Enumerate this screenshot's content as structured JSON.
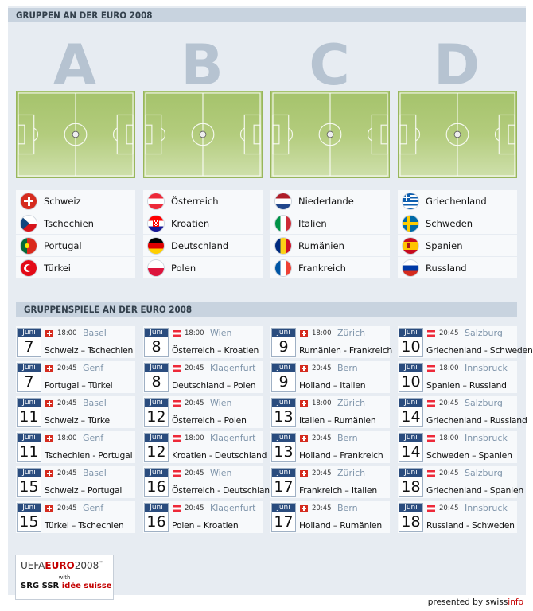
{
  "header": {
    "groups_title": "GRUPPEN AN DER EURO 2008",
    "matches_title": "GRUPPENSPIELE AN DER EURO 2008"
  },
  "groups": [
    {
      "letter": "A",
      "teams": [
        {
          "name": "Schweiz",
          "flag": "ch"
        },
        {
          "name": "Tschechien",
          "flag": "cz"
        },
        {
          "name": "Portugal",
          "flag": "pt"
        },
        {
          "name": "Türkei",
          "flag": "tr"
        }
      ]
    },
    {
      "letter": "B",
      "teams": [
        {
          "name": "Österreich",
          "flag": "at"
        },
        {
          "name": "Kroatien",
          "flag": "hr"
        },
        {
          "name": "Deutschland",
          "flag": "de"
        },
        {
          "name": "Polen",
          "flag": "pl"
        }
      ]
    },
    {
      "letter": "C",
      "teams": [
        {
          "name": "Niederlande",
          "flag": "nl"
        },
        {
          "name": "Italien",
          "flag": "it"
        },
        {
          "name": "Rumänien",
          "flag": "ro"
        },
        {
          "name": "Frankreich",
          "flag": "fr"
        }
      ]
    },
    {
      "letter": "D",
      "teams": [
        {
          "name": "Griechenland",
          "flag": "gr"
        },
        {
          "name": "Schweden",
          "flag": "se"
        },
        {
          "name": "Spanien",
          "flag": "es"
        },
        {
          "name": "Russland",
          "flag": "ru"
        }
      ]
    }
  ],
  "matches": [
    [
      {
        "month": "Juni",
        "day": "7",
        "host": "ch",
        "time": "18:00",
        "city": "Basel",
        "teams": "Schweiz – Tschechien"
      },
      {
        "month": "Juni",
        "day": "7",
        "host": "ch",
        "time": "20:45",
        "city": "Genf",
        "teams": "Portugal – Türkei"
      },
      {
        "month": "Juni",
        "day": "11",
        "host": "ch",
        "time": "20:45",
        "city": "Basel",
        "teams": "Schweiz – Türkei"
      },
      {
        "month": "Juni",
        "day": "11",
        "host": "ch",
        "time": "18:00",
        "city": "Genf",
        "teams": "Tschechien - Portugal"
      },
      {
        "month": "Juni",
        "day": "15",
        "host": "ch",
        "time": "20:45",
        "city": "Basel",
        "teams": "Schweiz – Portugal"
      },
      {
        "month": "Juni",
        "day": "15",
        "host": "ch",
        "time": "20:45",
        "city": "Genf",
        "teams": "Türkei – Tschechien"
      }
    ],
    [
      {
        "month": "Juni",
        "day": "8",
        "host": "at",
        "time": "18:00",
        "city": "Wien",
        "teams": "Österreich – Kroatien"
      },
      {
        "month": "Juni",
        "day": "8",
        "host": "at",
        "time": "20:45",
        "city": "Klagenfurt",
        "teams": "Deutschland – Polen"
      },
      {
        "month": "Juni",
        "day": "12",
        "host": "at",
        "time": "20:45",
        "city": "Wien",
        "teams": "Österreich – Polen"
      },
      {
        "month": "Juni",
        "day": "12",
        "host": "at",
        "time": "18:00",
        "city": "Klagenfurt",
        "teams": "Kroatien - Deutschland"
      },
      {
        "month": "Juni",
        "day": "16",
        "host": "at",
        "time": "20:45",
        "city": "Wien",
        "teams": "Österreich - Deutschland"
      },
      {
        "month": "Juni",
        "day": "16",
        "host": "at",
        "time": "20:45",
        "city": "Klagenfurt",
        "teams": "Polen – Kroatien"
      }
    ],
    [
      {
        "month": "Juni",
        "day": "9",
        "host": "ch",
        "time": "18:00",
        "city": "Zürich",
        "teams": "Rumänien - Frankreich"
      },
      {
        "month": "Juni",
        "day": "9",
        "host": "ch",
        "time": "20:45",
        "city": "Bern",
        "teams": "Holland – Italien"
      },
      {
        "month": "Juni",
        "day": "13",
        "host": "ch",
        "time": "18:00",
        "city": "Zürich",
        "teams": "Italien – Rumänien"
      },
      {
        "month": "Juni",
        "day": "13",
        "host": "ch",
        "time": "20:45",
        "city": "Bern",
        "teams": "Holland – Frankreich"
      },
      {
        "month": "Juni",
        "day": "17",
        "host": "ch",
        "time": "20:45",
        "city": "Zürich",
        "teams": "Frankreich – Italien"
      },
      {
        "month": "Juni",
        "day": "17",
        "host": "ch",
        "time": "20:45",
        "city": "Bern",
        "teams": "Holland – Rumänien"
      }
    ],
    [
      {
        "month": "Juni",
        "day": "10",
        "host": "at",
        "time": "20:45",
        "city": "Salzburg",
        "teams": "Griechenland - Schweden"
      },
      {
        "month": "Juni",
        "day": "10",
        "host": "at",
        "time": "18:00",
        "city": "Innsbruck",
        "teams": "Spanien – Russland"
      },
      {
        "month": "Juni",
        "day": "14",
        "host": "at",
        "time": "20:45",
        "city": "Salzburg",
        "teams": "Griechenland - Russland"
      },
      {
        "month": "Juni",
        "day": "14",
        "host": "at",
        "time": "18:00",
        "city": "Innsbruck",
        "teams": "Schweden – Spanien"
      },
      {
        "month": "Juni",
        "day": "18",
        "host": "at",
        "time": "20:45",
        "city": "Salzburg",
        "teams": "Griechenland - Spanien"
      },
      {
        "month": "Juni",
        "day": "18",
        "host": "at",
        "time": "20:45",
        "city": "Innsbruck",
        "teams": "Russland - Schweden"
      }
    ]
  ],
  "logo": {
    "prefix": "UEFA",
    "euro": "EURO",
    "year": "2008",
    "tm": "™",
    "with": "with",
    "srg": "SRG SSR ",
    "idee": "idée suisse"
  },
  "footer": {
    "presented": "presented by swiss",
    "brand": "info"
  },
  "colors": {
    "panel": "#e7ecf2",
    "header_bar": "#c8d3df",
    "calendar_month": "#2a4c7e",
    "city": "#7e94aa",
    "accent_red": "#c40000"
  }
}
